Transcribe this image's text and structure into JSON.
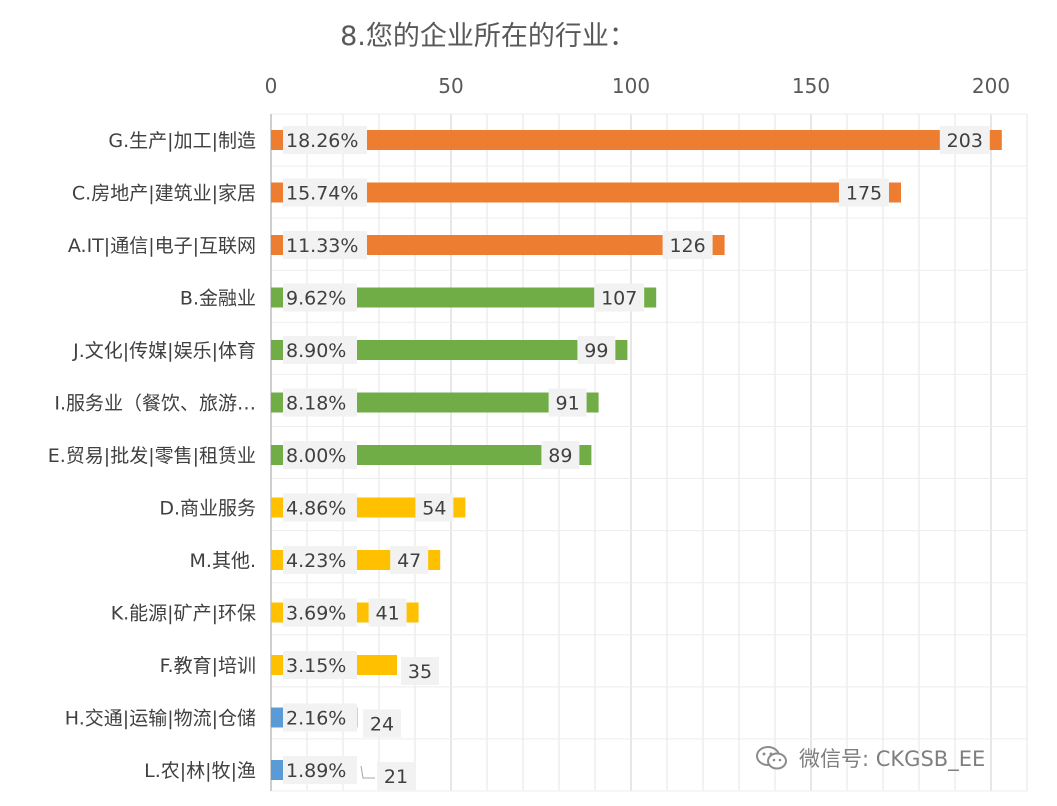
{
  "chart_data": {
    "type": "bar",
    "orientation": "horizontal",
    "title": "8.您的企业所在的行业：",
    "xlim": [
      0,
      210
    ],
    "x_ticks": [
      "0",
      "50",
      "100",
      "150",
      "200"
    ],
    "grid": true,
    "legend": "none",
    "categories": [
      "G.生产|加工|制造",
      "C.房地产|建筑业|家居",
      "A.IT|通信|电子|互联网",
      "B.金融业",
      "J.文化|传媒|娱乐|体育",
      "I.服务业（餐饮、旅游…",
      "E.贸易|批发|零售|租赁业",
      "D.商业服务",
      "M.其他.",
      "K.能源|矿产|环保",
      "F.教育|培训",
      "H.交通|运输|物流|仓储",
      "L.农|林|牧|渔"
    ],
    "values": [
      203,
      175,
      126,
      107,
      99,
      91,
      89,
      54,
      47,
      41,
      35,
      24,
      21
    ],
    "value_labels": [
      "203",
      "175",
      "126",
      "107",
      "99",
      "91",
      "89",
      "54",
      "47",
      "41",
      "35",
      "24",
      "21"
    ],
    "percent_labels": [
      "18.26%",
      "15.74%",
      "11.33%",
      "9.62%",
      "8.90%",
      "8.18%",
      "8.00%",
      "4.86%",
      "4.23%",
      "3.69%",
      "3.15%",
      "2.16%",
      "1.89%"
    ],
    "bar_colors": [
      "#ED7D31",
      "#ED7D31",
      "#ED7D31",
      "#70AD47",
      "#70AD47",
      "#70AD47",
      "#70AD47",
      "#FFC000",
      "#FFC000",
      "#FFC000",
      "#FFC000",
      "#5B9BD5",
      "#5B9BD5"
    ]
  },
  "watermark": {
    "icon": "wechat-icon",
    "text": "微信号: CKGSB_EE"
  }
}
